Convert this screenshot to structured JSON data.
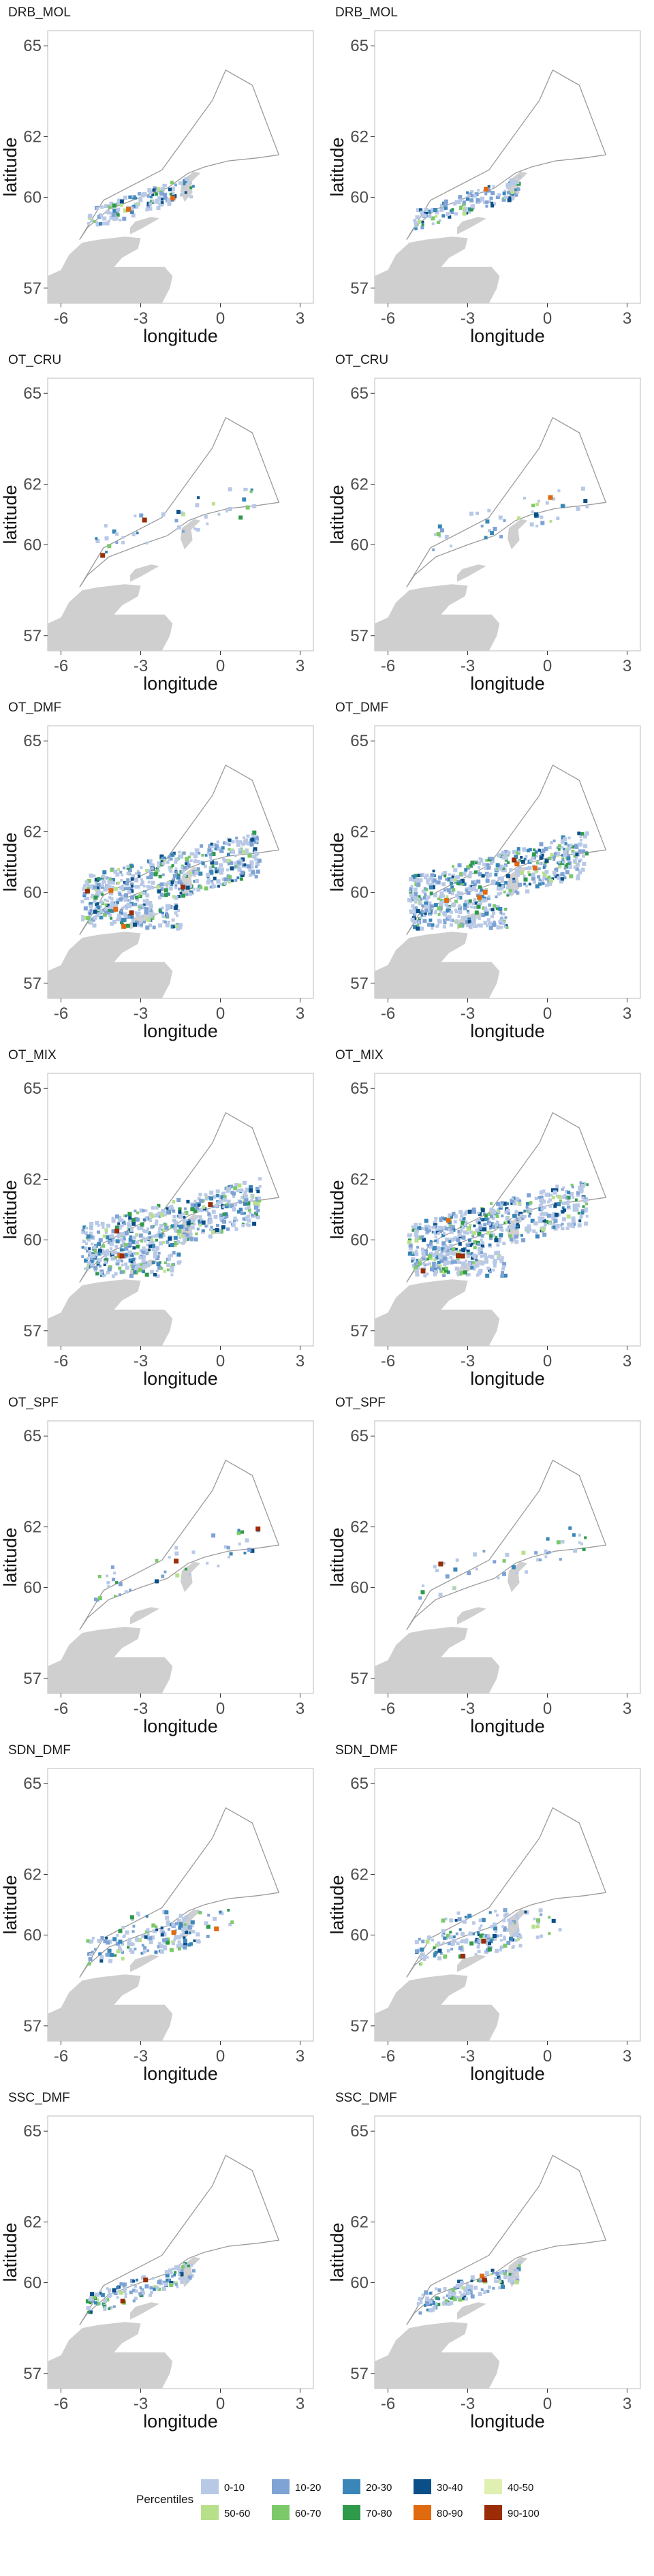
{
  "figure": {
    "axis_labels": {
      "x": "longitude",
      "y": "latitude"
    },
    "x_ticks": [
      -6,
      -3,
      0,
      3
    ],
    "y_ticks": [
      57,
      60,
      62,
      65
    ],
    "xlim": [
      -6.5,
      3.5
    ],
    "ylim": [
      56.5,
      65.5
    ]
  },
  "rows": [
    {
      "left_title": "DRB_MOL",
      "right_title": "DRB_MOL"
    },
    {
      "left_title": "OT_CRU",
      "right_title": "OT_CRU"
    },
    {
      "left_title": "OT_DMF",
      "right_title": "OT_DMF"
    },
    {
      "left_title": "OT_MIX",
      "right_title": "OT_MIX"
    },
    {
      "left_title": "OT_SPF",
      "right_title": "OT_SPF"
    },
    {
      "left_title": "SDN_DMF",
      "right_title": "SDN_DMF"
    },
    {
      "left_title": "SSC_DMF",
      "right_title": "SSC_DMF"
    }
  ],
  "legend": {
    "title": "Percentiles",
    "items": [
      {
        "label": "0-10",
        "color": "#b8c9e6"
      },
      {
        "label": "10-20",
        "color": "#7ea3d4"
      },
      {
        "label": "20-30",
        "color": "#3a86b8"
      },
      {
        "label": "30-40",
        "color": "#0b4f88"
      },
      {
        "label": "40-50",
        "color": "#dff0b0"
      },
      {
        "label": "50-60",
        "color": "#b8e08a"
      },
      {
        "label": "60-70",
        "color": "#7cc96a"
      },
      {
        "label": "70-80",
        "color": "#2e9a4a"
      },
      {
        "label": "80-90",
        "color": "#e06a10"
      },
      {
        "label": "90-100",
        "color": "#9a2c06"
      }
    ]
  },
  "colors": {
    "land": "#cfcfcf",
    "boundary": "#9a9a9a",
    "panel_border": "#bdbdbd"
  },
  "chart_data": {
    "type": "heatmap",
    "panels": [
      {
        "name": "DRB_MOL",
        "left": {
          "density": "low",
          "hotspots": 2
        },
        "right": {
          "density": "low",
          "hotspots": 1
        }
      },
      {
        "name": "OT_CRU",
        "left": {
          "density": "sparse",
          "hotspots": 2
        },
        "right": {
          "density": "sparse",
          "hotspots": 1
        }
      },
      {
        "name": "OT_DMF",
        "left": {
          "density": "high",
          "hotspots": 6
        },
        "right": {
          "density": "high",
          "hotspots": 6
        }
      },
      {
        "name": "OT_MIX",
        "left": {
          "density": "high",
          "hotspots": 4
        },
        "right": {
          "density": "high",
          "hotspots": 4
        }
      },
      {
        "name": "OT_SPF",
        "left": {
          "density": "sparse",
          "hotspots": 2
        },
        "right": {
          "density": "sparse",
          "hotspots": 1
        }
      },
      {
        "name": "SDN_DMF",
        "left": {
          "density": "medium",
          "hotspots": 2
        },
        "right": {
          "density": "medium",
          "hotspots": 2
        }
      },
      {
        "name": "SSC_DMF",
        "left": {
          "density": "low",
          "hotspots": 2
        },
        "right": {
          "density": "low",
          "hotspots": 2
        }
      }
    ]
  }
}
